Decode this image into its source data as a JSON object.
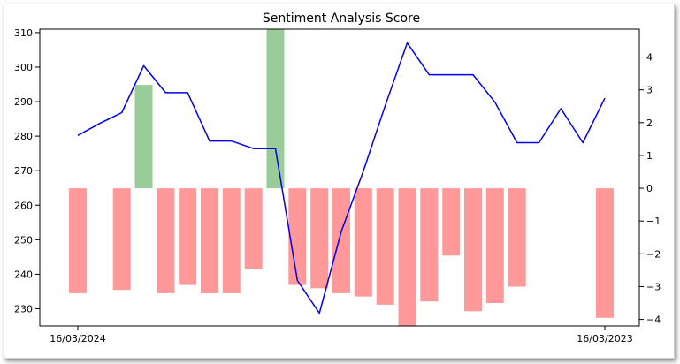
{
  "chart_data": {
    "type": "bar+line",
    "title": "Sentiment Analysis Score",
    "x_tick_labels": [
      "16/03/2024",
      "16/03/2023"
    ],
    "left_axis": {
      "ylim": [
        225,
        311
      ],
      "ticks": [
        230,
        240,
        250,
        260,
        270,
        280,
        290,
        300,
        310
      ]
    },
    "right_axis": {
      "ylim": [
        -4.2,
        4.85
      ],
      "ticks": [
        -4,
        -3,
        -2,
        -1,
        0,
        1,
        2,
        3,
        4
      ]
    },
    "line_series": {
      "color": "#0000ee",
      "values": [
        280.2,
        283.7,
        286.8,
        300.4,
        292.6,
        292.6,
        278.6,
        278.6,
        276.4,
        276.4,
        238.2,
        228.7,
        252.4,
        269.8,
        288.9,
        307.0,
        297.8,
        297.8,
        297.8,
        289.8,
        278.1,
        278.1,
        288.0,
        278.1,
        291.0
      ]
    },
    "bar_series": {
      "positive_color": "#99cc99",
      "negative_color": "#ff9999",
      "values": [
        -3.2,
        null,
        -3.1,
        3.15,
        -3.2,
        -2.95,
        -3.2,
        -3.2,
        -2.45,
        4.85,
        -2.95,
        -3.05,
        -3.2,
        -3.3,
        -3.55,
        -4.2,
        -3.45,
        -2.05,
        -3.75,
        -3.5,
        -3.0,
        null,
        null,
        null,
        -3.95
      ]
    },
    "grid": false
  }
}
